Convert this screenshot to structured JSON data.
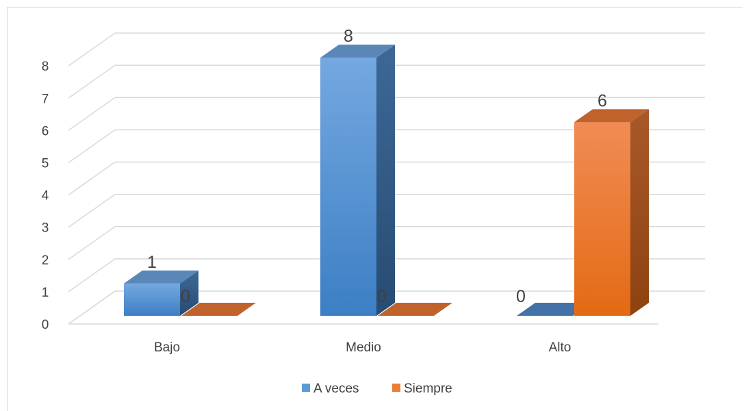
{
  "chart_data": {
    "type": "bar",
    "categories": [
      "Bajo",
      "Medio",
      "Alto"
    ],
    "series": [
      {
        "name": "A veces",
        "values": [
          1,
          8,
          0
        ],
        "color": "#5b9bd5"
      },
      {
        "name": "Siempre",
        "values": [
          0,
          0,
          6
        ],
        "color": "#ed7d31"
      }
    ],
    "yticks": [
      "0",
      "1",
      "2",
      "3",
      "4",
      "5",
      "6",
      "7",
      "8"
    ],
    "data_labels": [
      [
        "1",
        "8",
        "0"
      ],
      [
        "0",
        "0",
        "6"
      ]
    ],
    "ylim": [
      0,
      8
    ],
    "grid": true,
    "legend_position": "bottom",
    "style": "3d-clustered-column"
  }
}
